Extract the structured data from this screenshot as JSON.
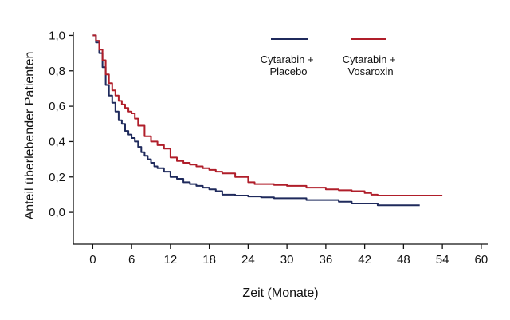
{
  "chart_data": {
    "type": "line",
    "title": "",
    "xlabel": "Zeit (Monate)",
    "ylabel": "Anteil überlebender Patienten",
    "xlim": [
      -3,
      61
    ],
    "ylim": [
      -0.18,
      1.02
    ],
    "xticks": [
      0,
      6,
      12,
      18,
      24,
      30,
      36,
      42,
      48,
      54,
      60
    ],
    "xtick_labels": [
      "0",
      "6",
      "12",
      "18",
      "24",
      "30",
      "36",
      "42",
      "48",
      "54",
      "60"
    ],
    "yticks": [
      0.0,
      0.2,
      0.4,
      0.6,
      0.8,
      1.0
    ],
    "ytick_labels": [
      "0,0",
      "0,2",
      "0,4",
      "0,6",
      "0,8",
      "1,0"
    ],
    "grid": false,
    "legend_position": "top-right",
    "series": [
      {
        "name": "Cytarabin + Placebo",
        "color": "#1f2a5c",
        "step": true,
        "x": [
          0,
          0.5,
          1,
          1.5,
          2,
          2.5,
          3,
          3.5,
          4,
          4.5,
          5,
          5.5,
          6,
          6.5,
          7,
          7.5,
          8,
          8.5,
          9,
          9.5,
          10,
          11,
          12,
          13,
          14,
          15,
          16,
          17,
          18,
          19,
          20,
          22,
          24,
          26,
          28,
          30,
          33,
          36,
          38,
          40,
          43,
          44,
          46,
          48,
          50.5
        ],
        "y": [
          1.0,
          0.96,
          0.9,
          0.82,
          0.72,
          0.66,
          0.62,
          0.57,
          0.52,
          0.5,
          0.46,
          0.44,
          0.42,
          0.4,
          0.37,
          0.34,
          0.32,
          0.3,
          0.28,
          0.26,
          0.25,
          0.23,
          0.2,
          0.19,
          0.17,
          0.16,
          0.15,
          0.14,
          0.13,
          0.12,
          0.1,
          0.095,
          0.09,
          0.085,
          0.08,
          0.08,
          0.07,
          0.07,
          0.06,
          0.05,
          0.05,
          0.04,
          0.04,
          0.04,
          0.04
        ]
      },
      {
        "name": "Cytarabin + Vosaroxin",
        "color": "#b01e2a",
        "step": true,
        "x": [
          0,
          0.5,
          1,
          1.5,
          2,
          2.5,
          3,
          3.5,
          4,
          4.5,
          5,
          5.5,
          6,
          6.5,
          7,
          8,
          9,
          10,
          11,
          12,
          13,
          14,
          15,
          16,
          17,
          18,
          19,
          20,
          22,
          24,
          25,
          28,
          30,
          33,
          36,
          38,
          40,
          42,
          43,
          44,
          46,
          48,
          54
        ],
        "y": [
          1.0,
          0.97,
          0.92,
          0.86,
          0.78,
          0.73,
          0.69,
          0.66,
          0.63,
          0.61,
          0.59,
          0.57,
          0.56,
          0.53,
          0.49,
          0.43,
          0.4,
          0.38,
          0.36,
          0.31,
          0.29,
          0.28,
          0.27,
          0.26,
          0.25,
          0.24,
          0.23,
          0.22,
          0.2,
          0.17,
          0.16,
          0.155,
          0.15,
          0.14,
          0.13,
          0.125,
          0.12,
          0.11,
          0.1,
          0.095,
          0.095,
          0.095,
          0.095
        ]
      }
    ]
  }
}
